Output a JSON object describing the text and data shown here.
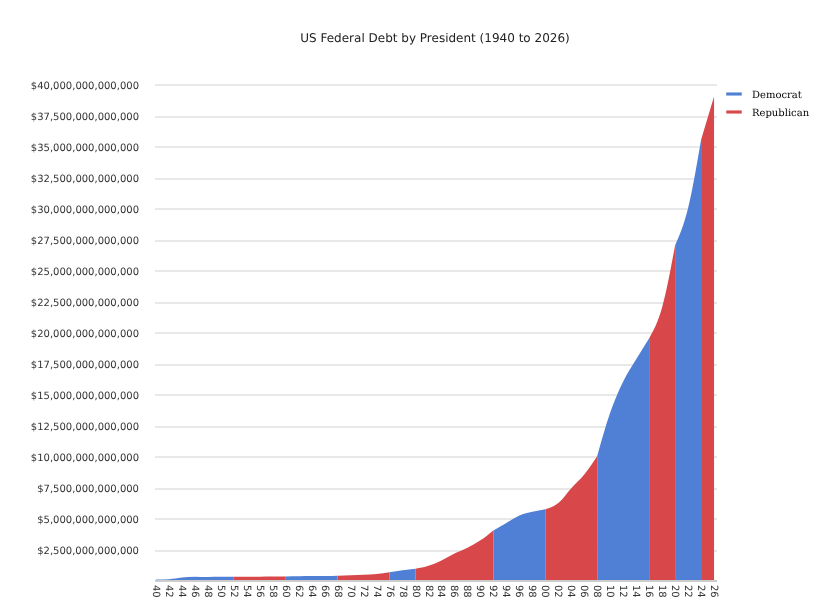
{
  "chart_data": {
    "type": "area",
    "title": "US Federal Debt by President (1940 to 2026)",
    "categories": [
      "40",
      "42",
      "44",
      "46",
      "48",
      "50",
      "52",
      "54",
      "56",
      "58",
      "60",
      "62",
      "64",
      "66",
      "68",
      "70",
      "72",
      "74",
      "76",
      "78",
      "80",
      "82",
      "84",
      "86",
      "88",
      "90",
      "92",
      "94",
      "96",
      "98",
      "00",
      "02",
      "04",
      "06",
      "08",
      "10",
      "12",
      "14",
      "16",
      "18",
      "20",
      "22",
      "24",
      "26"
    ],
    "series": [
      {
        "name": "Democrat",
        "color": "#4f80d6",
        "values": [
          50000000000,
          70000000000,
          200000000000,
          270000000000,
          250000000000,
          260000000000,
          260000000000,
          null,
          null,
          null,
          290000000000,
          300000000000,
          320000000000,
          330000000000,
          350000000000,
          null,
          null,
          null,
          630000000000,
          780000000000,
          910000000000,
          null,
          null,
          null,
          null,
          null,
          4000000000000,
          4600000000000,
          5200000000000,
          5500000000000,
          5700000000000,
          null,
          null,
          null,
          10000000000000,
          13500000000000,
          16000000000000,
          17800000000000,
          19500000000000,
          null,
          27000000000000,
          30000000000000,
          35500000000000,
          null
        ]
      },
      {
        "name": "Republican",
        "color": "#d8484a",
        "values": [
          null,
          null,
          null,
          null,
          null,
          null,
          260000000000,
          270000000000,
          270000000000,
          280000000000,
          290000000000,
          null,
          null,
          null,
          350000000000,
          380000000000,
          430000000000,
          480000000000,
          630000000000,
          null,
          910000000000,
          1140000000000,
          1570000000000,
          2130000000000,
          2600000000000,
          3200000000000,
          4000000000000,
          null,
          null,
          null,
          5700000000000,
          6200000000000,
          7400000000000,
          8500000000000,
          10000000000000,
          null,
          null,
          null,
          19500000000000,
          22000000000000,
          27000000000000,
          null,
          35500000000000,
          39000000000000
        ]
      }
    ],
    "ylim": [
      0,
      40000000000000
    ],
    "yticks": [
      {
        "value": 2500000000000,
        "label": "$2,500,000,000,000"
      },
      {
        "value": 5000000000000,
        "label": "$5,000,000,000,000"
      },
      {
        "value": 7500000000000,
        "label": "$7,500,000,000,000"
      },
      {
        "value": 10000000000000,
        "label": "$10,000,000,000,000"
      },
      {
        "value": 12500000000000,
        "label": "$12,500,000,000,000"
      },
      {
        "value": 15000000000000,
        "label": "$15,000,000,000,000"
      },
      {
        "value": 17500000000000,
        "label": "$17,500,000,000,000"
      },
      {
        "value": 20000000000000,
        "label": "$20,000,000,000,000"
      },
      {
        "value": 22500000000000,
        "label": "$22,500,000,000,000"
      },
      {
        "value": 25000000000000,
        "label": "$25,000,000,000,000"
      },
      {
        "value": 27500000000000,
        "label": "$27,500,000,000,000"
      },
      {
        "value": 30000000000000,
        "label": "$30,000,000,000,000"
      },
      {
        "value": 32500000000000,
        "label": "$32,500,000,000,000"
      },
      {
        "value": 35000000000000,
        "label": "$35,000,000,000,000"
      },
      {
        "value": 37500000000000,
        "label": "$37,500,000,000,000"
      },
      {
        "value": 40000000000000,
        "label": "$40,000,000,000,000"
      }
    ],
    "grid": "y",
    "legend": "top right"
  }
}
